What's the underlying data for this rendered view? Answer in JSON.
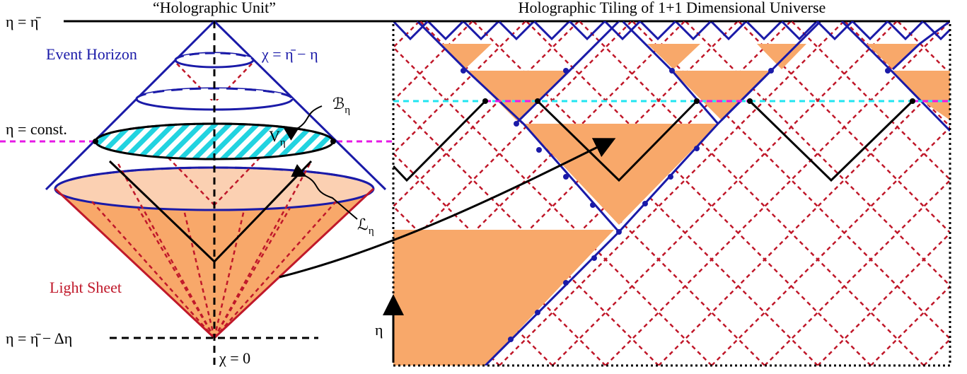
{
  "left_title": "“Holographic Unit”",
  "right_title": "Holographic Tiling of 1+1 Dimensional Universe",
  "labels": {
    "eta_top": "η = η̄",
    "event_horizon": "Event Horizon",
    "chi_eq": "χ = η̄ − η",
    "boundary": {
      "main": "ℬ",
      "sub": "η"
    },
    "eta_const": "η = const.",
    "volume": {
      "main": "V",
      "sub": "η"
    },
    "leaf": {
      "main": "ℒ",
      "sub": "η"
    },
    "light_sheet": "Light Sheet",
    "eta_bottom": "η = η̄ − Δη",
    "chi_zero": "χ = 0",
    "eta_axis": "η"
  }
}
